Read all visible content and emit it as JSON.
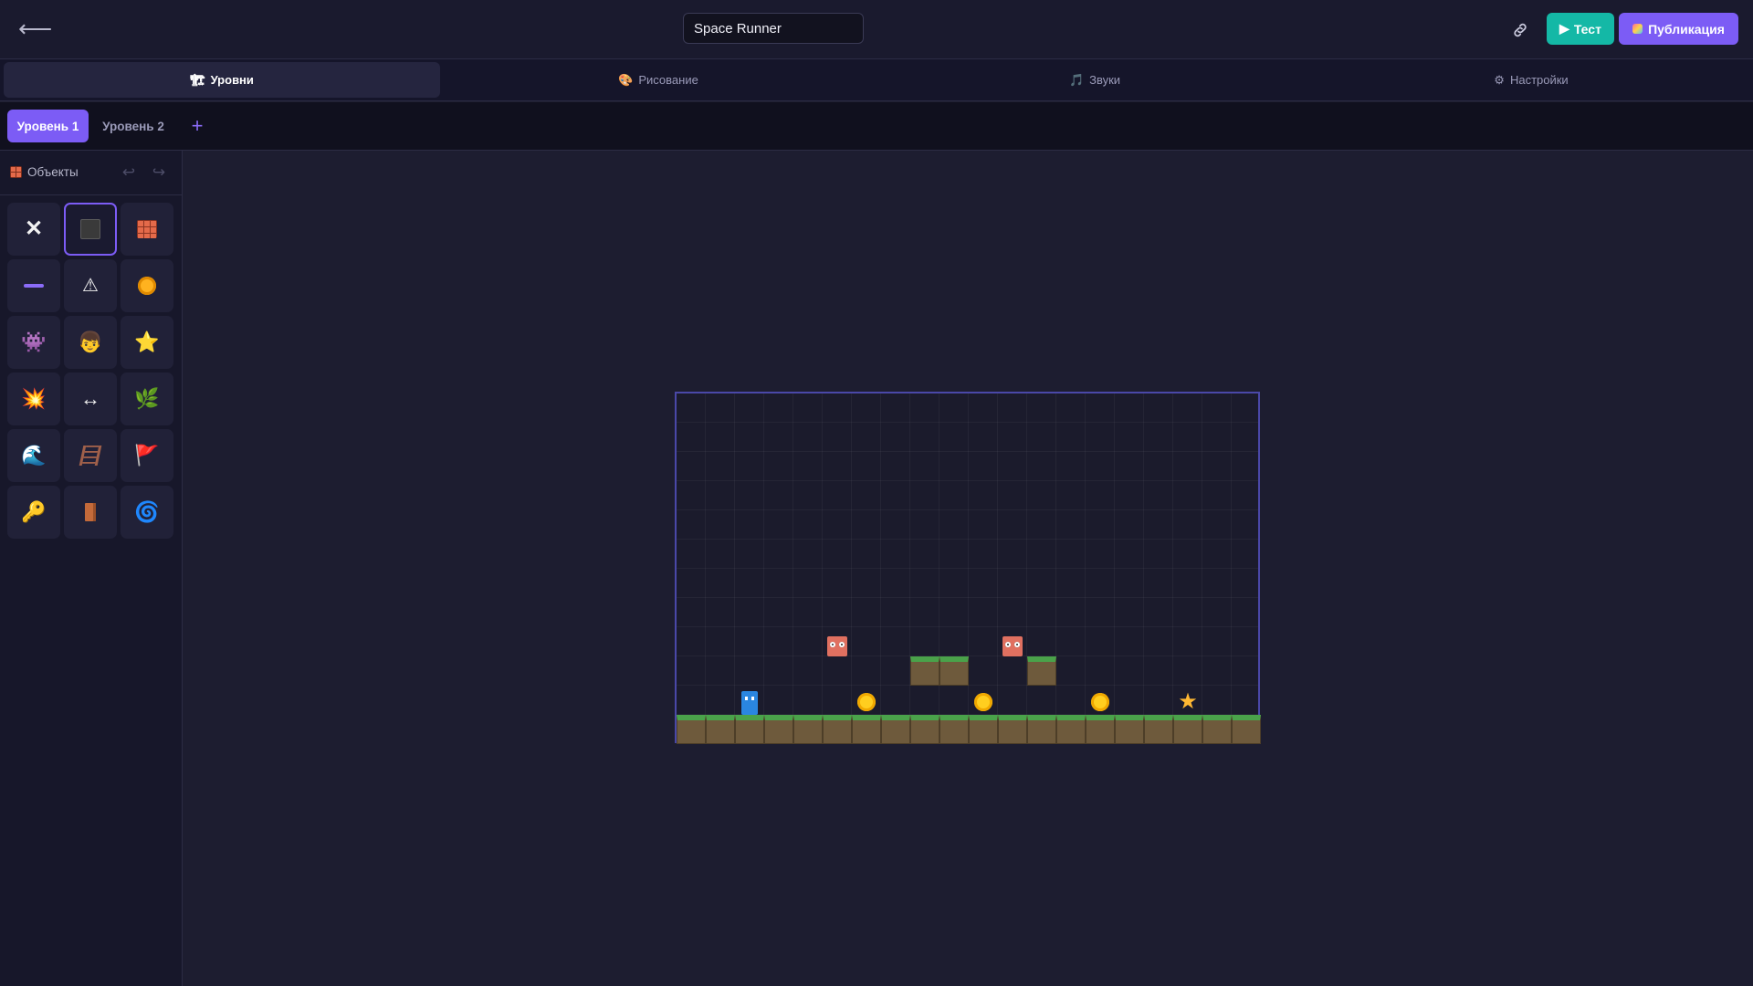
{
  "header": {
    "back_icon": "arrow-left-icon",
    "project_title": "Space Runner",
    "link_icon": "link-icon",
    "test_label": "Тест",
    "publish_label": "Публикация"
  },
  "main_tabs": [
    {
      "icon": "🏗",
      "label": "Уровни",
      "active": true
    },
    {
      "icon": "🎨",
      "label": "Рисование",
      "active": false
    },
    {
      "icon": "🎵",
      "label": "Звуки",
      "active": false
    },
    {
      "icon": "⚙",
      "label": "Настройки",
      "active": false
    }
  ],
  "level_tabs": [
    {
      "label": "Уровень 1",
      "active": true
    },
    {
      "label": "Уровень 2",
      "active": false
    }
  ],
  "add_level_label": "+",
  "sidebar": {
    "title": "Объекты",
    "undo_icon": "↩",
    "redo_icon": "↪",
    "tools": [
      {
        "name": "eraser",
        "glyph": "✕"
      },
      {
        "name": "block",
        "glyph": ""
      },
      {
        "name": "brick",
        "glyph": "🧱"
      },
      {
        "name": "platform",
        "glyph": "—"
      },
      {
        "name": "spike",
        "glyph": "⚠"
      },
      {
        "name": "coin",
        "glyph": "🪙"
      },
      {
        "name": "enemy",
        "glyph": "👾"
      },
      {
        "name": "player",
        "glyph": "👦"
      },
      {
        "name": "star",
        "glyph": "⭐"
      },
      {
        "name": "explosion",
        "glyph": "💥"
      },
      {
        "name": "moving-platform",
        "glyph": "↔"
      },
      {
        "name": "plant",
        "glyph": "🌿"
      },
      {
        "name": "water",
        "glyph": "🌊"
      },
      {
        "name": "ladder",
        "glyph": "🪜"
      },
      {
        "name": "flag",
        "glyph": "🚩"
      },
      {
        "name": "key",
        "glyph": "🔑"
      },
      {
        "name": "door",
        "glyph": "🚪"
      },
      {
        "name": "portal",
        "glyph": "🌀"
      }
    ],
    "selected_tool": "block"
  },
  "level": {
    "grid_cols": 20,
    "grid_rows": 12,
    "ground_row": 11,
    "platform_cells": [
      [
        8,
        9
      ],
      [
        9,
        9
      ],
      [
        12,
        9
      ]
    ],
    "player_cell": [
      2,
      10
    ],
    "enemy_cells": [
      [
        5,
        8
      ],
      [
        11,
        8
      ]
    ],
    "coin_cells": [
      [
        6,
        10
      ],
      [
        10,
        10
      ],
      [
        14,
        10
      ]
    ],
    "star_cell": [
      17,
      10
    ]
  },
  "colors": {
    "accent": "#7c5cf5",
    "test_button": "#14b8a6",
    "grass": "#4aa24a",
    "dirt": "#6e5a3c",
    "player": "#2a86e0",
    "enemy": "#e07060",
    "coin": "#ffce1f"
  }
}
